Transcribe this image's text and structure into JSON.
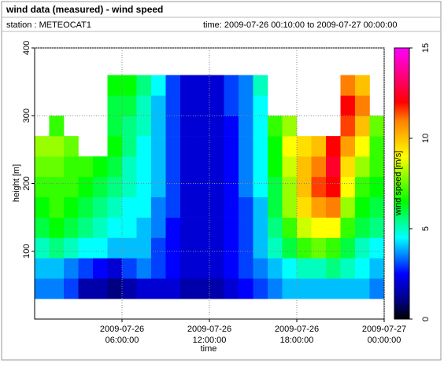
{
  "header": {
    "title": "wind data (measured) - wind speed",
    "station": "station : METEOCAT1",
    "time": "time: 2009-07-26 00:10:00 to 2009-07-27 00:00:00"
  },
  "chart_data": {
    "type": "heatmap",
    "xlabel": "time",
    "ylabel": "height [m]",
    "colorbar_label": "wind speed [m/s]",
    "x": [
      "2009-07-26 00:00:00",
      "2009-07-26 01:00:00",
      "2009-07-26 02:00:00",
      "2009-07-26 03:00:00",
      "2009-07-26 04:00:00",
      "2009-07-26 05:00:00",
      "2009-07-26 06:00:00",
      "2009-07-26 07:00:00",
      "2009-07-26 08:00:00",
      "2009-07-26 09:00:00",
      "2009-07-26 10:00:00",
      "2009-07-26 11:00:00",
      "2009-07-26 12:00:00",
      "2009-07-26 13:00:00",
      "2009-07-26 14:00:00",
      "2009-07-26 15:00:00",
      "2009-07-26 16:00:00",
      "2009-07-26 17:00:00",
      "2009-07-26 18:00:00",
      "2009-07-26 19:00:00",
      "2009-07-26 20:00:00",
      "2009-07-26 21:00:00",
      "2009-07-26 22:00:00",
      "2009-07-26 23:00:00"
    ],
    "y": [
      45,
      75,
      105,
      135,
      165,
      195,
      225,
      255,
      285,
      315,
      345
    ],
    "values": [
      [
        3.5,
        3.5,
        3,
        1.5,
        1.5,
        1,
        1.5,
        2,
        2,
        2,
        1.5,
        1.5,
        1.5,
        2,
        2.5,
        3,
        3.5,
        4,
        4,
        4,
        4,
        4,
        4,
        3.5
      ],
      [
        4,
        4,
        3.5,
        3,
        2.5,
        2,
        3,
        3.5,
        3,
        2.5,
        2,
        2,
        2,
        2.5,
        3,
        3.5,
        4,
        4.5,
        5,
        5,
        5.5,
        5,
        4.5,
        4
      ],
      [
        5,
        5.5,
        5,
        4.5,
        4.5,
        4,
        4,
        4,
        3,
        2.5,
        2,
        2,
        2,
        2.5,
        3,
        4,
        5,
        6,
        7,
        7.5,
        7,
        6,
        5,
        4.5
      ],
      [
        6,
        6.5,
        6,
        5.5,
        5,
        4.5,
        4.5,
        4,
        3.5,
        2.5,
        2,
        2,
        2,
        2.5,
        3,
        4,
        5.5,
        7,
        8.5,
        9,
        9,
        7,
        6,
        5.5
      ],
      [
        6.5,
        7,
        6.5,
        6,
        5.5,
        5,
        4.5,
        4.5,
        3.5,
        3,
        2,
        2,
        2,
        2.5,
        3,
        4,
        6,
        8,
        9.5,
        10.5,
        11,
        8,
        6.5,
        6
      ],
      [
        7,
        7,
        7,
        6.5,
        6,
        5.5,
        5,
        4.5,
        4,
        3,
        2,
        2,
        2,
        2.5,
        3.5,
        4.5,
        6,
        8,
        10,
        11.5,
        12,
        9,
        7,
        6.5
      ],
      [
        7.5,
        7.5,
        7,
        7,
        6.5,
        6,
        5,
        4.5,
        4,
        3,
        2,
        2,
        2,
        2.5,
        3.5,
        4.5,
        6.5,
        8.5,
        10,
        11,
        12.5,
        9.5,
        8,
        7
      ],
      [
        8,
        8,
        7.5,
        null,
        null,
        6.5,
        5.5,
        4.5,
        4,
        3,
        2,
        2,
        2,
        2.5,
        3.5,
        4.5,
        6.5,
        9,
        9.5,
        10,
        12,
        10.5,
        9,
        7
      ],
      [
        null,
        7,
        null,
        null,
        null,
        6,
        5.5,
        5,
        4,
        3,
        2,
        2,
        2,
        2.5,
        3.5,
        4.5,
        7,
        8,
        null,
        null,
        null,
        11.5,
        10,
        7.5
      ],
      [
        null,
        null,
        null,
        null,
        null,
        6,
        6,
        5,
        4,
        3,
        2,
        2,
        2,
        3,
        3.5,
        4.5,
        null,
        null,
        null,
        null,
        null,
        12,
        11,
        null
      ],
      [
        null,
        null,
        null,
        null,
        null,
        6.5,
        6.5,
        5.5,
        4.5,
        3,
        2,
        2,
        2,
        3,
        3.5,
        5,
        null,
        null,
        null,
        null,
        null,
        11,
        10,
        null
      ]
    ],
    "cell_height": 30,
    "xlim": [
      "2009-07-26 00:00:00",
      "2009-07-27 00:00:00"
    ],
    "xticks": [
      {
        "value": "2009-07-26 06:00:00",
        "label": [
          "2009-07-26",
          "06:00:00"
        ]
      },
      {
        "value": "2009-07-26 12:00:00",
        "label": [
          "2009-07-26",
          "12:00:00"
        ]
      },
      {
        "value": "2009-07-26 18:00:00",
        "label": [
          "2009-07-26",
          "18:00:00"
        ]
      },
      {
        "value": "2009-07-27 00:00:00",
        "label": [
          "2009-07-27",
          "00:00:00"
        ]
      }
    ],
    "ylim": [
      0,
      400
    ],
    "yticks": [
      100,
      200,
      300,
      400
    ],
    "grid": true,
    "zlim": [
      0,
      15
    ],
    "zticks": [
      0,
      5,
      10,
      15
    ],
    "colormap": [
      [
        0,
        "#000000"
      ],
      [
        1,
        "#000080"
      ],
      [
        2.5,
        "#0000ff"
      ],
      [
        4.5,
        "#00ffff"
      ],
      [
        6.5,
        "#00ff00"
      ],
      [
        9,
        "#ffff00"
      ],
      [
        11,
        "#ff8000"
      ],
      [
        12,
        "#ff0000"
      ],
      [
        15,
        "#ff00ff"
      ]
    ]
  }
}
